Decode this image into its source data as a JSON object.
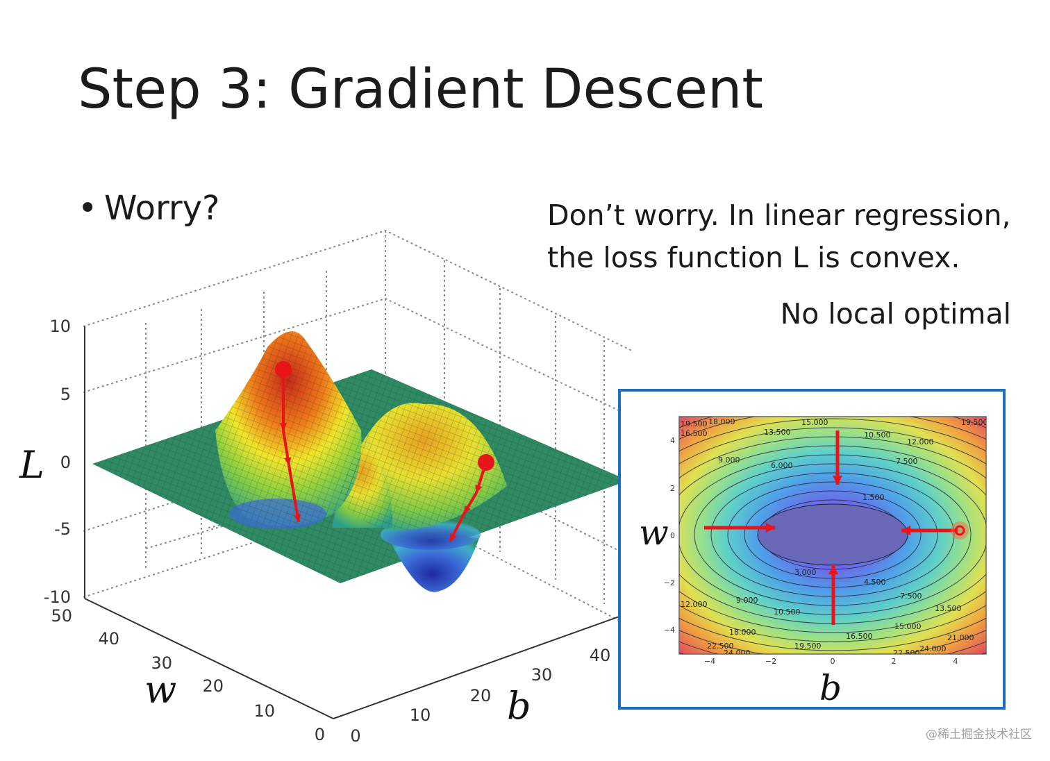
{
  "slide": {
    "title": "Step 3: Gradient Descent",
    "bullet_text": "Worry?",
    "note_line1": "Don’t worry. In linear regression,",
    "note_line2": "the loss function L is convex.",
    "note_line3": "No local optimal",
    "watermark": "@稀土掘金技术社区"
  },
  "surface_plot": {
    "z_axis_label": "L",
    "w_axis_label": "w",
    "b_axis_label": "b",
    "z_ticks": [
      "10",
      "5",
      "0",
      "-5",
      "-10"
    ],
    "w_ticks": [
      "50",
      "40",
      "30",
      "20",
      "10",
      "0"
    ],
    "b_ticks": [
      "0",
      "10",
      "20",
      "30",
      "40"
    ],
    "arrow_color": "#e8141a",
    "floor_color": "#2f8a63"
  },
  "contour_plot": {
    "w_axis_label": "w",
    "b_axis_label": "b",
    "x_ticks": [
      "−4",
      "−2",
      "0",
      "2",
      "4"
    ],
    "y_ticks": [
      "4",
      "2",
      "0",
      "−2",
      "−4"
    ],
    "level_labels": [
      "19.500",
      "18.000",
      "16.500",
      "13.500",
      "15.000",
      "10.500",
      "12.000",
      "9.000",
      "6.000",
      "7.500",
      "1.500",
      "3.000",
      "4.500",
      "9.000",
      "7.500",
      "10.500",
      "12.000",
      "13.500",
      "15.000",
      "18.000",
      "16.500",
      "19.500",
      "21.000",
      "22.500",
      "24.000",
      "22.500",
      "24.000",
      "19.500"
    ],
    "frame_color": "#1d6fb8",
    "arrow_color": "#e8141a"
  }
}
